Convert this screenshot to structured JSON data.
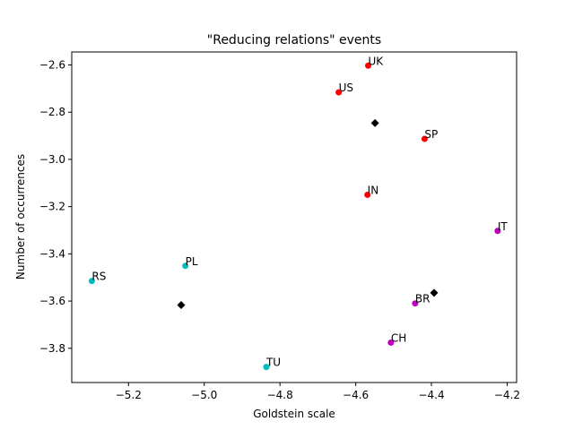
{
  "chart_data": {
    "type": "scatter",
    "title": "\"Reducing relations\" events",
    "xlabel": "Goldstein scale",
    "ylabel": "Number of occurrences",
    "xlim": [
      -5.35,
      -4.175
    ],
    "ylim": [
      -3.945,
      -2.545
    ],
    "xticks": [
      -5.2,
      -5.0,
      -4.8,
      -4.6,
      -4.4,
      -4.2
    ],
    "yticks": [
      -3.8,
      -3.6,
      -3.4,
      -3.2,
      -3.0,
      -2.8,
      -2.6
    ],
    "xtick_labels": [
      "−5.2",
      "−5.0",
      "−4.8",
      "−4.6",
      "−4.4",
      "−4.2"
    ],
    "ytick_labels": [
      "−3.8",
      "−3.6",
      "−3.4",
      "−3.2",
      "−3.0",
      "−2.8",
      "−2.6"
    ],
    "grid": false,
    "colors": {
      "red": "#ff0000",
      "magenta": "#bf00bf",
      "cyan": "#00bfbf",
      "black": "#000000"
    },
    "points": [
      {
        "label": "UK",
        "x": -4.567,
        "y": -2.603,
        "color": "#ff0000"
      },
      {
        "label": "US",
        "x": -4.645,
        "y": -2.716,
        "color": "#ff0000"
      },
      {
        "label": "SP",
        "x": -4.418,
        "y": -2.913,
        "color": "#ff0000"
      },
      {
        "label": "IN",
        "x": -4.569,
        "y": -3.15,
        "color": "#ff0000"
      },
      {
        "label": "IT",
        "x": -4.225,
        "y": -3.303,
        "color": "#bf00bf"
      },
      {
        "label": "BR",
        "x": -4.443,
        "y": -3.61,
        "color": "#bf00bf"
      },
      {
        "label": "CH",
        "x": -4.507,
        "y": -3.776,
        "color": "#bf00bf"
      },
      {
        "label": "PL",
        "x": -5.05,
        "y": -3.451,
        "color": "#00bfbf"
      },
      {
        "label": "RS",
        "x": -5.297,
        "y": -3.515,
        "color": "#00bfbf"
      },
      {
        "label": "TU",
        "x": -4.836,
        "y": -3.879,
        "color": "#00bfbf"
      }
    ],
    "centroids": [
      {
        "x": -4.549,
        "y": -2.846,
        "color": "#000000"
      },
      {
        "x": -4.393,
        "y": -3.565,
        "color": "#000000"
      },
      {
        "x": -5.061,
        "y": -3.617,
        "color": "#000000"
      }
    ]
  }
}
